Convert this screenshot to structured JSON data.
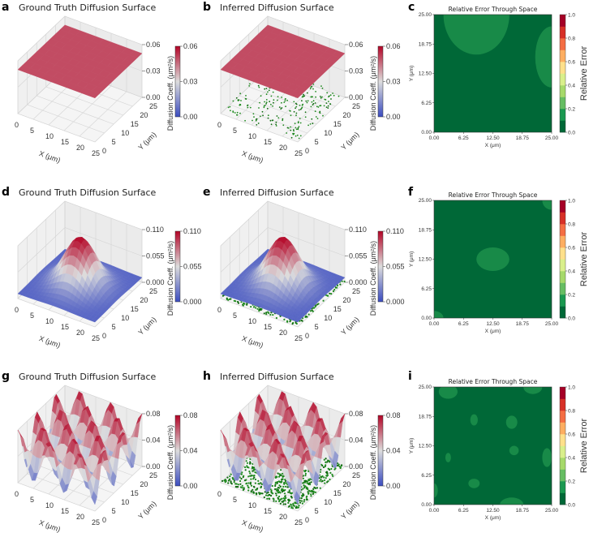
{
  "chart_data": [
    {
      "letter": "a",
      "type": "surface",
      "title": "Ground Truth Diffusion Surface",
      "xlabel": "X (μm)",
      "ylabel": "Y (μm)",
      "zlabel": "Diffusion Coeff. (μm²/s)",
      "x_ticks": [
        "0",
        "5",
        "10",
        "15",
        "20",
        "25"
      ],
      "y_ticks": [
        "0",
        "5",
        "10",
        "15",
        "20",
        "25"
      ],
      "z_ticks": [
        "0.00",
        "0.03",
        "0.06"
      ],
      "zlim": [
        0,
        0.06
      ],
      "colorbar_ticks": [
        "0.00",
        "0.03",
        "0.06"
      ],
      "function": {
        "kind": "constant",
        "value": 0.05
      },
      "samples": false
    },
    {
      "letter": "b",
      "type": "surface",
      "title": "Inferred Diffusion Surface",
      "xlabel": "X (μm)",
      "ylabel": "Y (μm)",
      "zlabel": "Diffusion Coeff. (μm²/s)",
      "x_ticks": [
        "0",
        "5",
        "10",
        "15",
        "20",
        "25"
      ],
      "y_ticks": [
        "0",
        "5",
        "10",
        "15",
        "20",
        "25"
      ],
      "z_ticks": [
        "0.00",
        "0.03",
        "0.06"
      ],
      "zlim": [
        0,
        0.06
      ],
      "colorbar_ticks": [
        "0.00",
        "0.03",
        "0.06"
      ],
      "function": {
        "kind": "constant",
        "value": 0.05
      },
      "samples": "sparse"
    },
    {
      "letter": "c",
      "type": "heatmap",
      "title": "Relative Error Through Space",
      "xlabel": "X (μm)",
      "ylabel": "Y (μm)",
      "x_ticks": [
        "0.00",
        "6.25",
        "12.50",
        "18.75",
        "25.00"
      ],
      "y_ticks": [
        "0.00",
        "6.25",
        "12.50",
        "18.75",
        "25.00"
      ],
      "colorbar_label": "Relative Error",
      "colorbar_ticks": [
        "0.0",
        "0.2",
        "0.4",
        "0.6",
        "0.8",
        "1.0"
      ],
      "regions": [
        {
          "x": 9,
          "y": 25,
          "rx": 7,
          "ry": 8.5,
          "value": 0.07
        },
        {
          "x": 25,
          "y": 16,
          "rx": 3.5,
          "ry": 6.5,
          "value": 0.07
        }
      ]
    },
    {
      "letter": "d",
      "type": "surface",
      "title": "Ground Truth Diffusion Surface",
      "xlabel": "X (μm)",
      "ylabel": "Y (μm)",
      "zlabel": "Diffusion Coeff. (μm²/s)",
      "x_ticks": [
        "0",
        "5",
        "10",
        "15",
        "20",
        "25"
      ],
      "y_ticks": [
        "0",
        "5",
        "10",
        "15",
        "20",
        "25"
      ],
      "z_ticks": [
        "0.000",
        "0.055",
        "0.110"
      ],
      "zlim": [
        0,
        0.11
      ],
      "colorbar_ticks": [
        "0.000",
        "0.055",
        "0.110"
      ],
      "function": {
        "kind": "gaussian",
        "base": 0.01,
        "amplitude": 0.1,
        "center": [
          12.5,
          12.5
        ],
        "sigma": 4.5
      },
      "samples": false
    },
    {
      "letter": "e",
      "type": "surface",
      "title": "Inferred Diffusion Surface",
      "xlabel": "X (μm)",
      "ylabel": "Y (μm)",
      "zlabel": "Diffusion Coeff. (μm²/s)",
      "x_ticks": [
        "0",
        "5",
        "10",
        "15",
        "20",
        "25"
      ],
      "y_ticks": [
        "0",
        "5",
        "10",
        "15",
        "20",
        "25"
      ],
      "z_ticks": [
        "0.000",
        "0.055",
        "0.110"
      ],
      "zlim": [
        0,
        0.11
      ],
      "colorbar_ticks": [
        "0.000",
        "0.055",
        "0.110"
      ],
      "function": {
        "kind": "gaussian",
        "base": 0.01,
        "amplitude": 0.1,
        "center": [
          12.5,
          12.5
        ],
        "sigma": 4.5
      },
      "samples": "dense"
    },
    {
      "letter": "f",
      "type": "heatmap",
      "title": "Relative Error Through Space",
      "xlabel": "X (μm)",
      "ylabel": "Y (μm)",
      "x_ticks": [
        "0.00",
        "6.25",
        "12.50",
        "18.75",
        "25.00"
      ],
      "y_ticks": [
        "0.00",
        "6.25",
        "12.50",
        "18.75",
        "25.00"
      ],
      "colorbar_label": "Relative Error",
      "colorbar_ticks": [
        "0.0",
        "0.2",
        "0.4",
        "0.6",
        "0.8",
        "1.0"
      ],
      "regions": [
        {
          "x": 12.5,
          "y": 12.5,
          "rx": 3.5,
          "ry": 2.5,
          "value": 0.07
        },
        {
          "x": 25,
          "y": 25,
          "rx": 2,
          "ry": 2,
          "value": 0.07
        },
        {
          "x": 0,
          "y": 0,
          "rx": 2,
          "ry": 1.5,
          "value": 0.07
        }
      ]
    },
    {
      "letter": "g",
      "type": "surface",
      "title": "Ground Truth Diffusion Surface",
      "xlabel": "X (μm)",
      "ylabel": "Y (μm)",
      "zlabel": "Diffusion Coeff. (μm²/s)",
      "x_ticks": [
        "0",
        "5",
        "10",
        "15",
        "20",
        "25"
      ],
      "y_ticks": [
        "0",
        "5",
        "10",
        "15",
        "20",
        "25"
      ],
      "z_ticks": [
        "0.00",
        "0.04",
        "0.08"
      ],
      "zlim": [
        0,
        0.08
      ],
      "colorbar_ticks": [
        "0.00",
        "0.04",
        "0.08"
      ],
      "function": {
        "kind": "sinusoidal",
        "mean": 0.045,
        "amplitude": 0.035,
        "periods": 2.5
      },
      "samples": false
    },
    {
      "letter": "h",
      "type": "surface",
      "title": "Inferred Diffusion Surface",
      "xlabel": "X (μm)",
      "ylabel": "Y (μm)",
      "zlabel": "Diffusion Coeff. (μm²/s)",
      "x_ticks": [
        "0",
        "5",
        "10",
        "15",
        "20",
        "25"
      ],
      "y_ticks": [
        "0",
        "5",
        "10",
        "15",
        "20",
        "25"
      ],
      "z_ticks": [
        "0.00",
        "0.04",
        "0.08"
      ],
      "zlim": [
        0,
        0.08
      ],
      "colorbar_ticks": [
        "0.00",
        "0.04",
        "0.08"
      ],
      "function": {
        "kind": "sinusoidal",
        "mean": 0.045,
        "amplitude": 0.035,
        "periods": 2.5
      },
      "samples": "dense"
    },
    {
      "letter": "i",
      "type": "heatmap",
      "title": "Relative Error Through Space",
      "xlabel": "X (μm)",
      "ylabel": "Y (μm)",
      "x_ticks": [
        "0.00",
        "6.25",
        "12.50",
        "18.75",
        "25.00"
      ],
      "y_ticks": [
        "0.00",
        "6.25",
        "12.50",
        "18.75",
        "25.00"
      ],
      "colorbar_label": "Relative Error",
      "colorbar_ticks": [
        "0.0",
        "0.2",
        "0.4",
        "0.6",
        "0.8",
        "1.0"
      ],
      "regions": [
        {
          "x": 3,
          "y": 24,
          "rx": 2,
          "ry": 1.5,
          "value": 0.07
        },
        {
          "x": 21,
          "y": 25,
          "rx": 2,
          "ry": 1.5,
          "value": 0.07
        },
        {
          "x": 8.5,
          "y": 18,
          "rx": 0.8,
          "ry": 1.2,
          "value": 0.07
        },
        {
          "x": 16.5,
          "y": 17.5,
          "rx": 1.2,
          "ry": 1.4,
          "value": 0.07
        },
        {
          "x": 17,
          "y": 11.5,
          "rx": 1,
          "ry": 1,
          "value": 0.07
        },
        {
          "x": 3,
          "y": 10,
          "rx": 0.6,
          "ry": 1,
          "value": 0.07
        },
        {
          "x": 8.5,
          "y": 4.5,
          "rx": 1.2,
          "ry": 1,
          "value": 0.07
        },
        {
          "x": 16.5,
          "y": 0,
          "rx": 2.5,
          "ry": 1.5,
          "value": 0.07
        },
        {
          "x": 24,
          "y": 10,
          "rx": 1,
          "ry": 2,
          "value": 0.07
        },
        {
          "x": 0,
          "y": 3,
          "rx": 0.8,
          "ry": 1.5,
          "value": 0.07
        }
      ]
    }
  ],
  "colors": {
    "surface_low": "#3b4cc0",
    "surface_mid": "#dddddd",
    "surface_high": "#b40426",
    "sample_points": "#1a7a1a",
    "error_base": "#006837",
    "error_blob": "#188a48"
  }
}
